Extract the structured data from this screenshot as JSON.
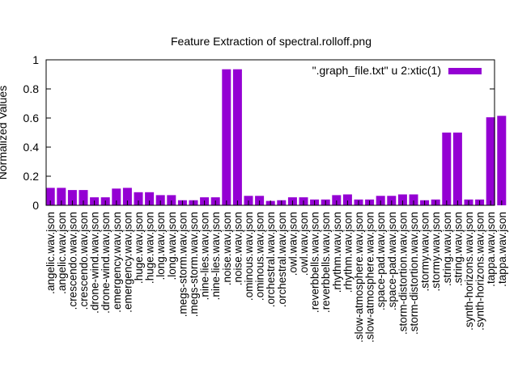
{
  "chart_data": {
    "type": "bar",
    "title": "Feature Extraction of spectral.rolloff.png",
    "ylabel": "Normalized Values",
    "xlabel": "",
    "ylim": [
      0,
      1
    ],
    "yticks": [
      "0",
      "0.2",
      "0.4",
      "0.6",
      "0.8",
      "1"
    ],
    "legend": ".graph_file.txt\" u 2:xtic(1)",
    "legend_display": "\".graph_file.txt\" u 2:xtic(1)",
    "legend_position": "top-right",
    "bar_color": "#9400d3",
    "categories": [
      ".angelic.wav.json",
      ".angelic.wav.json",
      ".crescendo.wav.json",
      ".crescendo.wav.json",
      ".drone-wind.wav.json",
      ".drone-wind.wav.json",
      ".emergency.wav.json",
      ".emergency.wav.json",
      ".huge.wav.json",
      ".huge.wav.json",
      ".long.wav.json",
      ".long.wav.json",
      ".megs-storm.wav.json",
      ".megs-storm.wav.json",
      ".nine-lies.wav.json",
      ".nine-lies.wav.json",
      ".noise.wav.json",
      ".noise.wav.json",
      ".ominous.wav.json",
      ".ominous.wav.json",
      ".orchestral.wav.json",
      ".orchestral.wav.json",
      ".owl.wav.json",
      ".owl.wav.json",
      ".reverbbells.wav.json",
      ".reverbbells.wav.json",
      ".rhythm.wav.json",
      ".rhythm.wav.json",
      ".slow-atmosphere.wav.json",
      ".slow-atmosphere.wav.json",
      ".space-pad.wav.json",
      ".space-pad.wav.json",
      ".storm-distortion.wav.json",
      ".storm-distortion.wav.json",
      ".stormy.wav.json",
      ".stormy.wav.json",
      ".string.wav.json",
      ".string.wav.json",
      ".synth-horizons.wav.json",
      ".synth-horizons.wav.json",
      ".tappa.wav.json",
      ".tappa.wav.json"
    ],
    "values": [
      0.12,
      0.12,
      0.105,
      0.105,
      0.055,
      0.055,
      0.115,
      0.12,
      0.09,
      0.09,
      0.07,
      0.07,
      0.035,
      0.035,
      0.055,
      0.055,
      0.935,
      0.935,
      0.065,
      0.065,
      0.03,
      0.035,
      0.055,
      0.055,
      0.04,
      0.04,
      0.07,
      0.075,
      0.04,
      0.04,
      0.065,
      0.065,
      0.075,
      0.075,
      0.035,
      0.04,
      0.5,
      0.5,
      0.04,
      0.04,
      0.605,
      0.615
    ]
  }
}
